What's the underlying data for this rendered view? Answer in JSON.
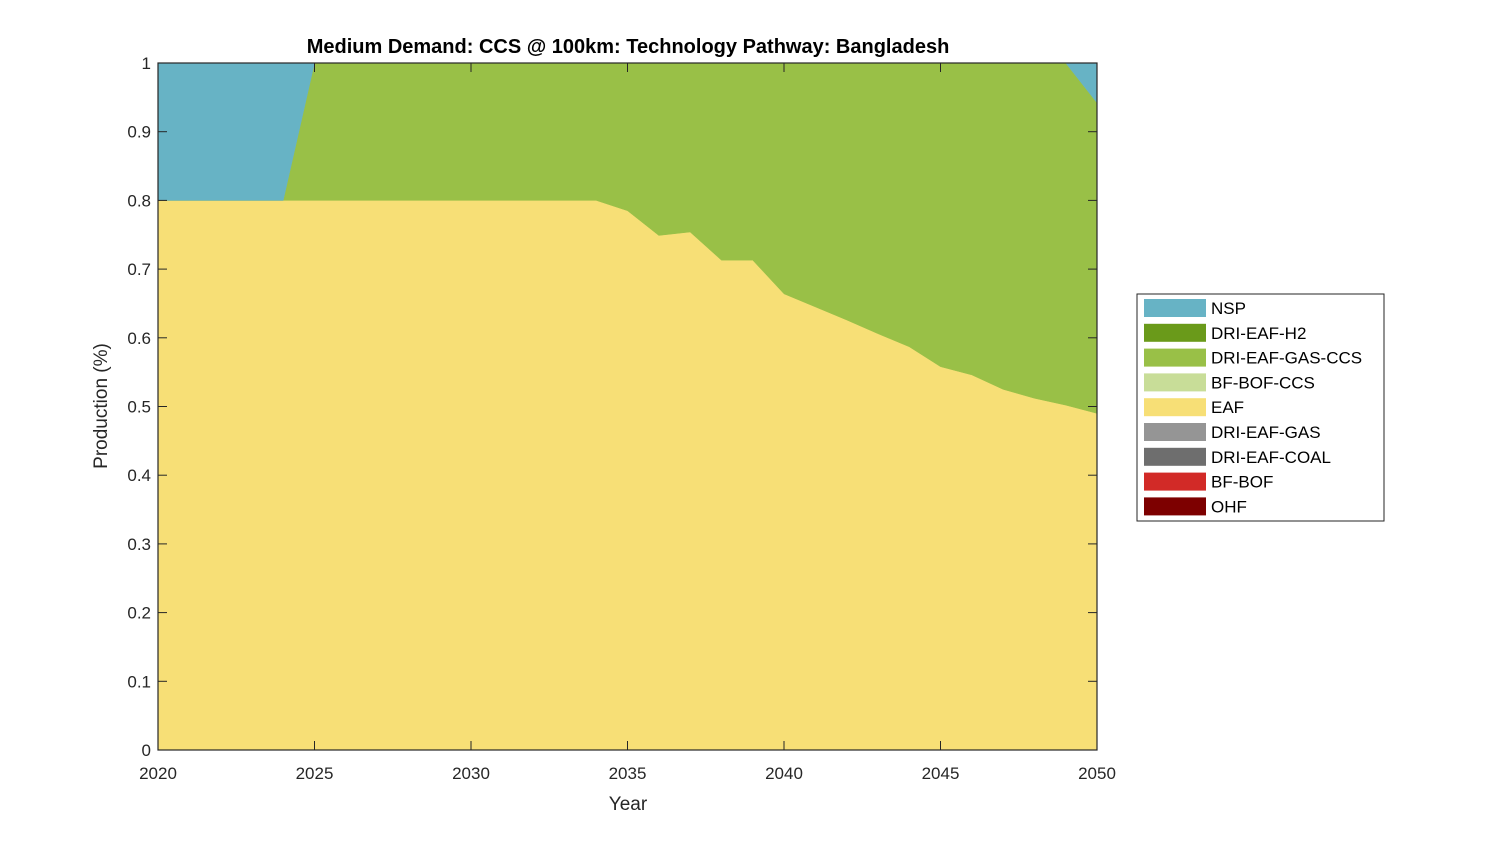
{
  "chart_data": {
    "type": "area",
    "title": "Medium Demand: CCS @ 100km: Technology Pathway: Bangladesh",
    "xlabel": "Year",
    "ylabel": "Production (%)",
    "xlim": [
      2020,
      2050
    ],
    "ylim": [
      0,
      1
    ],
    "xticks": [
      "2020",
      "2025",
      "2030",
      "2035",
      "2040",
      "2045",
      "2050"
    ],
    "xtick_values": [
      2020,
      2025,
      2030,
      2035,
      2040,
      2045,
      2050
    ],
    "yticks": [
      "0",
      "0.1",
      "0.2",
      "0.3",
      "0.4",
      "0.5",
      "0.6",
      "0.7",
      "0.8",
      "0.9",
      "1"
    ],
    "ytick_values": [
      0,
      0.1,
      0.2,
      0.3,
      0.4,
      0.5,
      0.6,
      0.7,
      0.8,
      0.9,
      1
    ],
    "grid": false,
    "legend_position": "right",
    "stacking_order": [
      "EAF",
      "DRI-EAF-GAS-CCS",
      "NSP"
    ],
    "x": [
      2020,
      2021,
      2022,
      2023,
      2024,
      2025,
      2026,
      2027,
      2028,
      2029,
      2030,
      2031,
      2032,
      2033,
      2034,
      2035,
      2036,
      2037,
      2038,
      2039,
      2040,
      2041,
      2042,
      2043,
      2044,
      2045,
      2046,
      2047,
      2048,
      2049,
      2050
    ],
    "series": [
      {
        "name": "NSP",
        "color": "#67b3c5",
        "values": [
          0.2,
          0.2,
          0.2,
          0.2,
          0.2,
          0,
          0,
          0,
          0,
          0,
          0,
          0,
          0,
          0,
          0,
          0,
          0,
          0,
          0,
          0,
          0,
          0,
          0,
          0,
          0,
          0,
          0,
          0,
          0,
          0,
          0.058
        ]
      },
      {
        "name": "DRI-EAF-H2",
        "color": "#6a9a1a",
        "values": [
          0,
          0,
          0,
          0,
          0,
          0,
          0,
          0,
          0,
          0,
          0,
          0,
          0,
          0,
          0,
          0,
          0,
          0,
          0,
          0,
          0,
          0,
          0,
          0,
          0,
          0,
          0,
          0,
          0,
          0,
          0
        ]
      },
      {
        "name": "DRI-EAF-GAS-CCS",
        "color": "#99c047",
        "values": [
          0,
          0,
          0,
          0,
          0,
          0.2,
          0.2,
          0.2,
          0.2,
          0.2,
          0.2,
          0.2,
          0.2,
          0.2,
          0.2,
          0.215,
          0.251,
          0.246,
          0.287,
          0.287,
          0.336,
          0.355,
          0.374,
          0.394,
          0.413,
          0.442,
          0.454,
          0.475,
          0.488,
          0.498,
          0.452
        ]
      },
      {
        "name": "BF-BOF-CCS",
        "color": "#c8dd98",
        "values": [
          0,
          0,
          0,
          0,
          0,
          0,
          0,
          0,
          0,
          0,
          0,
          0,
          0,
          0,
          0,
          0,
          0,
          0,
          0,
          0,
          0,
          0,
          0,
          0,
          0,
          0,
          0,
          0,
          0,
          0,
          0
        ]
      },
      {
        "name": "EAF",
        "color": "#f7df76",
        "values": [
          0.8,
          0.8,
          0.8,
          0.8,
          0.8,
          0.8,
          0.8,
          0.8,
          0.8,
          0.8,
          0.8,
          0.8,
          0.8,
          0.8,
          0.8,
          0.785,
          0.749,
          0.754,
          0.713,
          0.713,
          0.664,
          0.645,
          0.626,
          0.606,
          0.587,
          0.558,
          0.546,
          0.525,
          0.512,
          0.502,
          0.49
        ]
      },
      {
        "name": "DRI-EAF-GAS",
        "color": "#959595",
        "values": [
          0,
          0,
          0,
          0,
          0,
          0,
          0,
          0,
          0,
          0,
          0,
          0,
          0,
          0,
          0,
          0,
          0,
          0,
          0,
          0,
          0,
          0,
          0,
          0,
          0,
          0,
          0,
          0,
          0,
          0,
          0
        ]
      },
      {
        "name": "DRI-EAF-COAL",
        "color": "#6e6e6e",
        "values": [
          0,
          0,
          0,
          0,
          0,
          0,
          0,
          0,
          0,
          0,
          0,
          0,
          0,
          0,
          0,
          0,
          0,
          0,
          0,
          0,
          0,
          0,
          0,
          0,
          0,
          0,
          0,
          0,
          0,
          0,
          0
        ]
      },
      {
        "name": "BF-BOF",
        "color": "#d22a27",
        "values": [
          0,
          0,
          0,
          0,
          0,
          0,
          0,
          0,
          0,
          0,
          0,
          0,
          0,
          0,
          0,
          0,
          0,
          0,
          0,
          0,
          0,
          0,
          0,
          0,
          0,
          0,
          0,
          0,
          0,
          0,
          0
        ]
      },
      {
        "name": "OHF",
        "color": "#7d0000",
        "values": [
          0,
          0,
          0,
          0,
          0,
          0,
          0,
          0,
          0,
          0,
          0,
          0,
          0,
          0,
          0,
          0,
          0,
          0,
          0,
          0,
          0,
          0,
          0,
          0,
          0,
          0,
          0,
          0,
          0,
          0,
          0
        ]
      }
    ],
    "legend": [
      "NSP",
      "DRI-EAF-H2",
      "DRI-EAF-GAS-CCS",
      "BF-BOF-CCS",
      "EAF",
      "DRI-EAF-GAS",
      "DRI-EAF-COAL",
      "BF-BOF",
      "OHF"
    ]
  }
}
